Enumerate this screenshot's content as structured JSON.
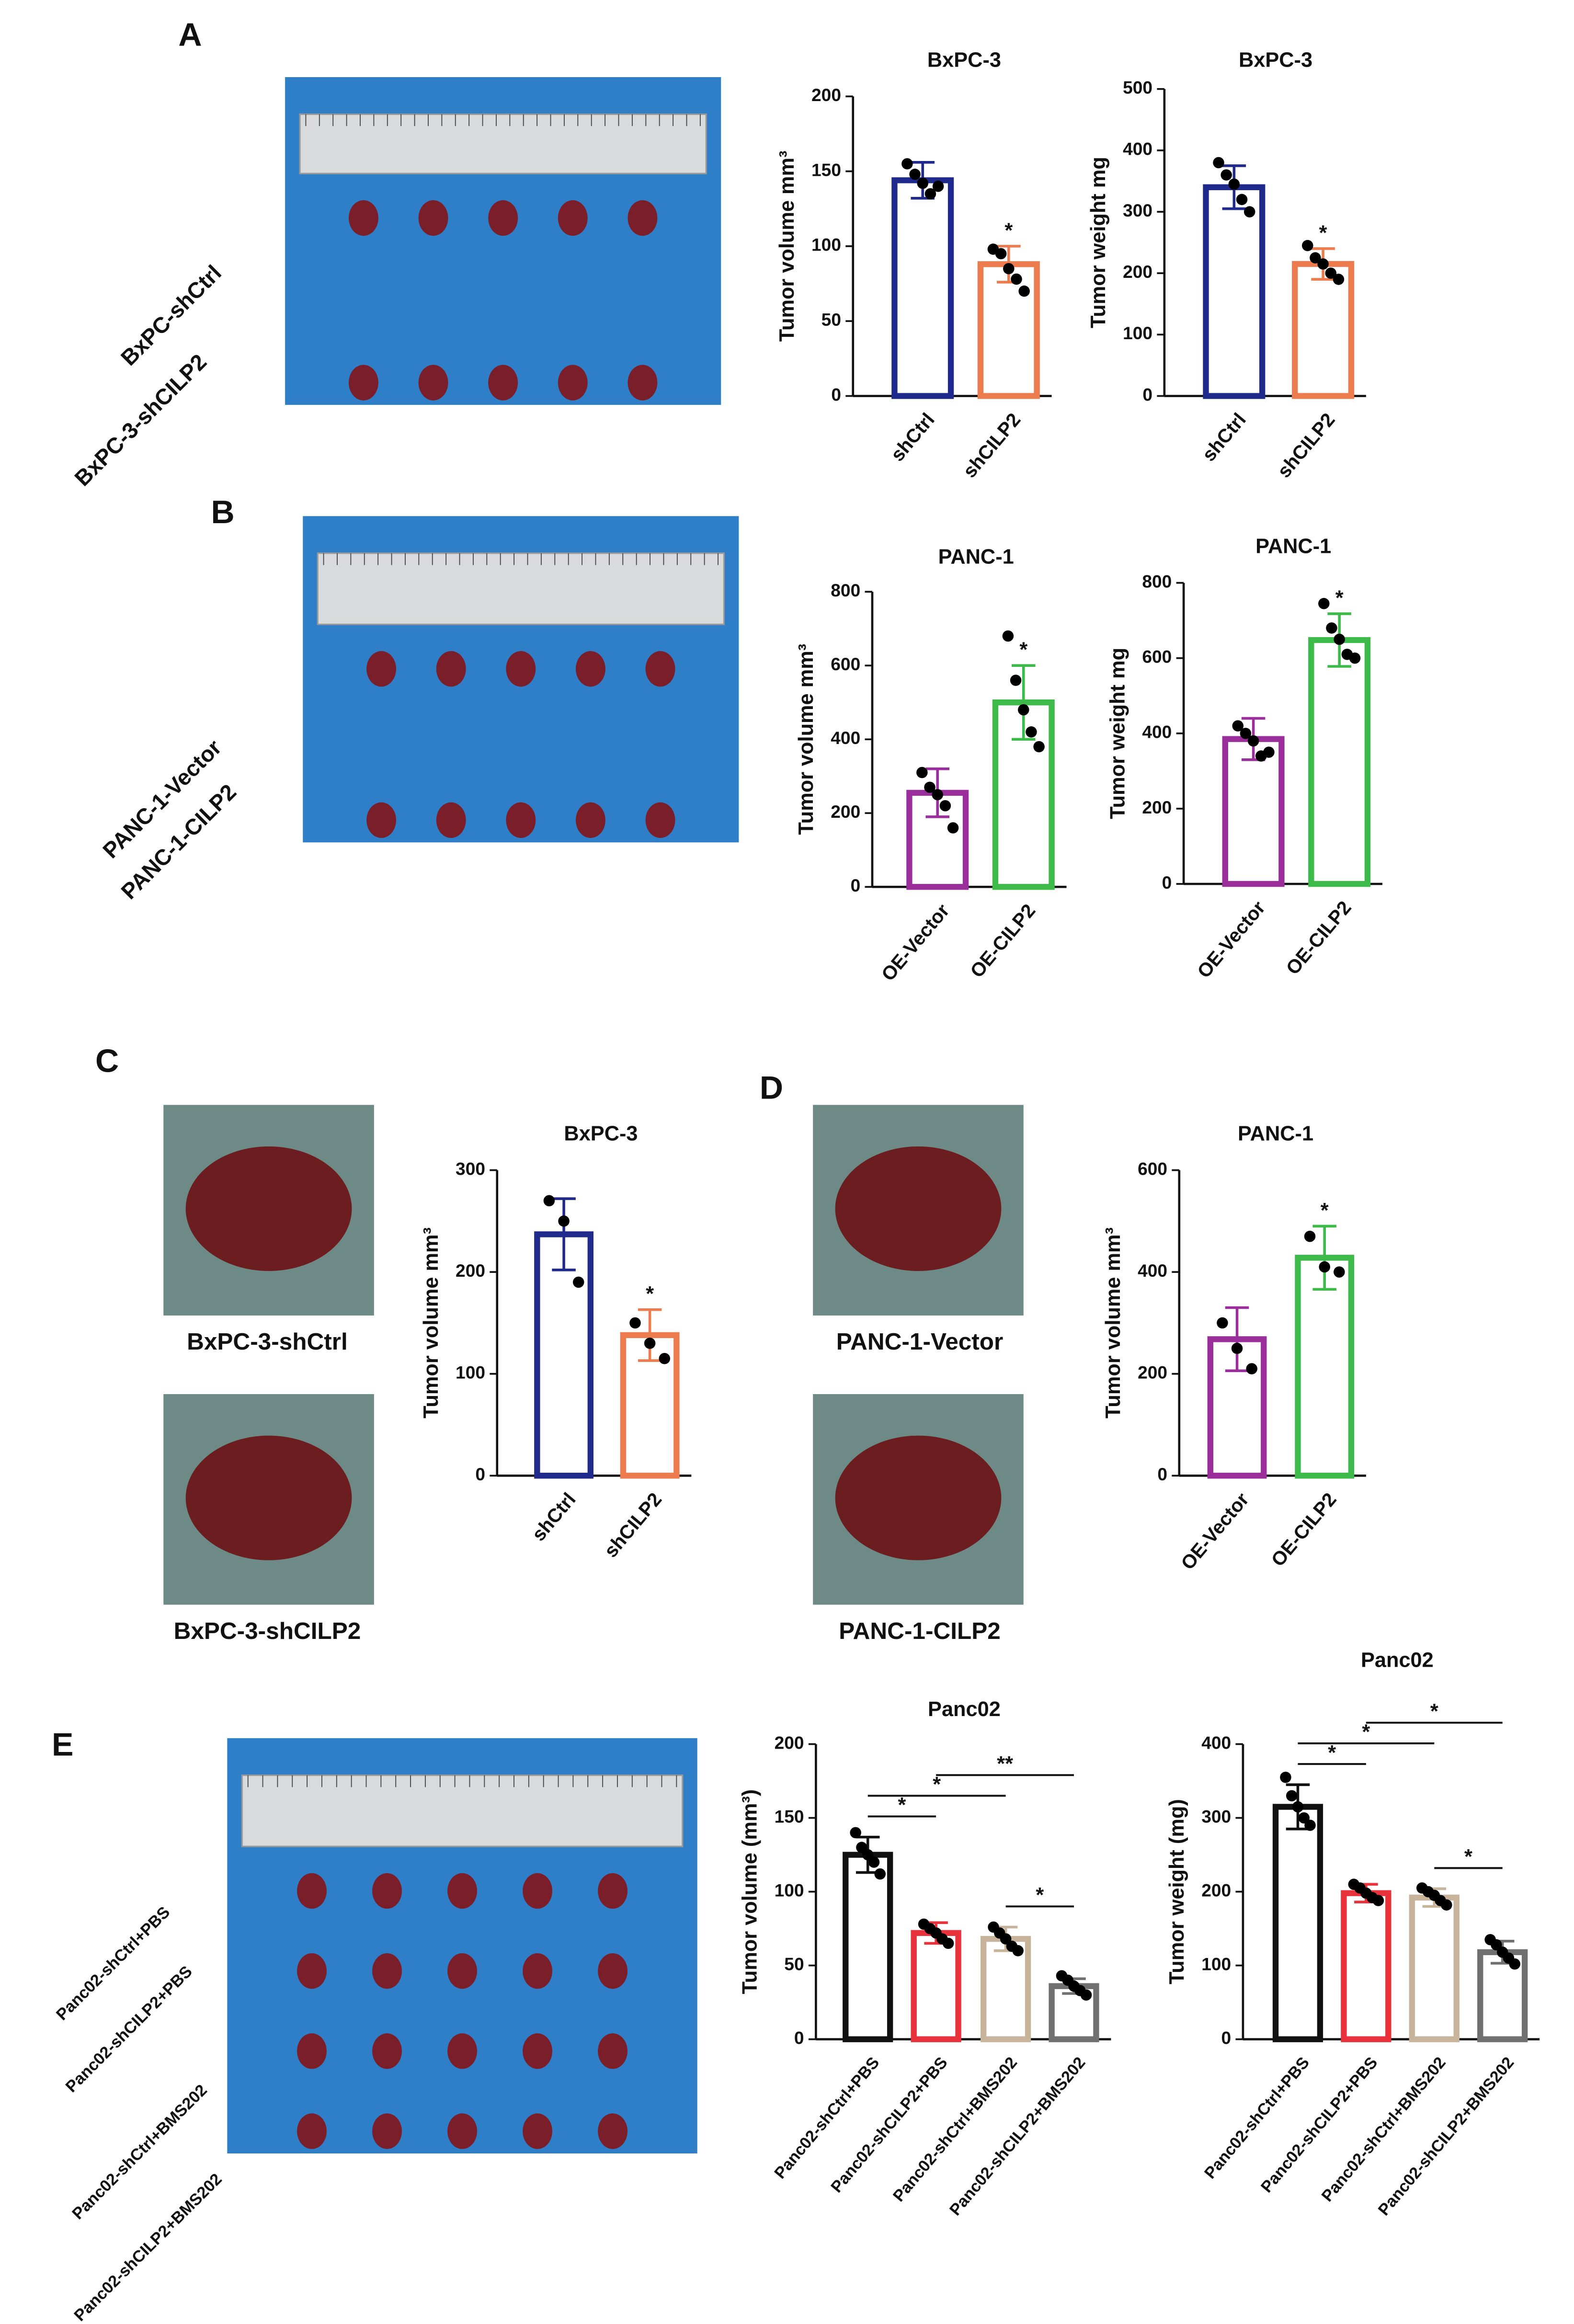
{
  "panels": [
    "A",
    "B",
    "C",
    "D",
    "E"
  ],
  "photo_labels": [
    "BxPC-shCtrl",
    "BxPC-3-shCILP2",
    "PANC-1-Vector",
    "PANC-1-CILP2",
    "BxPC-3-shCtrl",
    "BxPC-3-shCILP2",
    "PANC-1-Vector",
    "PANC-1-CILP2",
    "Panc02-shCtrl+PBS",
    "Panc02-shCILP2+PBS",
    "Panc02-shCtrl+BMS202",
    "Panc02-shCILP2+BMS202"
  ],
  "chart_data": [
    {
      "type": "bar",
      "title": "BxPC-3",
      "ylabel": "Tumor volume  mm³",
      "categories": [
        "shCtrl",
        "shCILP2"
      ],
      "values": [
        144,
        88
      ],
      "errors": [
        12,
        12
      ],
      "colors": [
        "#1f2a8c",
        "#ec7b4e"
      ],
      "points": [
        [
          155,
          148,
          142,
          135,
          140
        ],
        [
          98,
          95,
          85,
          78,
          70
        ]
      ],
      "ylim": [
        0,
        200
      ],
      "yticks": [
        0,
        50,
        100,
        150,
        200
      ],
      "annotations": [
        {
          "index": 1,
          "text": "*"
        }
      ]
    },
    {
      "type": "bar",
      "title": "BxPC-3",
      "ylabel": "Tumor weight  mg",
      "categories": [
        "shCtrl",
        "shCILP2"
      ],
      "values": [
        340,
        215
      ],
      "errors": [
        35,
        25
      ],
      "colors": [
        "#1f2a8c",
        "#ec7b4e"
      ],
      "points": [
        [
          380,
          360,
          345,
          320,
          300
        ],
        [
          245,
          225,
          215,
          200,
          190
        ]
      ],
      "ylim": [
        0,
        500
      ],
      "yticks": [
        0,
        100,
        200,
        300,
        400,
        500
      ],
      "annotations": [
        {
          "index": 1,
          "text": "*"
        }
      ]
    },
    {
      "type": "bar",
      "title": "PANC-1",
      "ylabel": "Tumor volume  mm³",
      "categories": [
        "OE-Vector",
        "OE-CILP2"
      ],
      "values": [
        255,
        500
      ],
      "errors": [
        65,
        100
      ],
      "colors": [
        "#9a2f9c",
        "#3dba4a"
      ],
      "points": [
        [
          310,
          270,
          250,
          220,
          160
        ],
        [
          680,
          560,
          480,
          420,
          380
        ]
      ],
      "ylim": [
        0,
        800
      ],
      "yticks": [
        0,
        200,
        400,
        600,
        800
      ],
      "annotations": [
        {
          "index": 1,
          "text": "*"
        }
      ]
    },
    {
      "type": "bar",
      "title": "PANC-1",
      "ylabel": "Tumor weight  mg",
      "categories": [
        "OE-Vector",
        "OE-CILP2"
      ],
      "values": [
        385,
        648
      ],
      "errors": [
        55,
        70
      ],
      "colors": [
        "#9a2f9c",
        "#3dba4a"
      ],
      "points": [
        [
          420,
          400,
          380,
          340,
          350
        ],
        [
          745,
          680,
          650,
          610,
          600
        ]
      ],
      "ylim": [
        0,
        800
      ],
      "yticks": [
        0,
        200,
        400,
        600,
        800
      ],
      "annotations": [
        {
          "index": 1,
          "text": "*"
        }
      ]
    },
    {
      "type": "bar",
      "title": "BxPC-3",
      "ylabel": "Tumor volume  mm³",
      "categories": [
        "shCtrl",
        "shCILP2"
      ],
      "values": [
        237,
        138
      ],
      "errors": [
        35,
        25
      ],
      "colors": [
        "#1f2a8c",
        "#ec7b4e"
      ],
      "points": [
        [
          270,
          250,
          190
        ],
        [
          150,
          130,
          115
        ]
      ],
      "ylim": [
        0,
        300
      ],
      "yticks": [
        0,
        100,
        200,
        300
      ],
      "annotations": [
        {
          "index": 1,
          "text": "*"
        }
      ]
    },
    {
      "type": "bar",
      "title": "PANC-1",
      "ylabel": "Tumor volume  mm³",
      "categories": [
        "OE-Vector",
        "OE-CILP2"
      ],
      "values": [
        268,
        428
      ],
      "errors": [
        62,
        62
      ],
      "colors": [
        "#9a2f9c",
        "#3dba4a"
      ],
      "points": [
        [
          300,
          250,
          210
        ],
        [
          470,
          410,
          400
        ]
      ],
      "ylim": [
        0,
        600
      ],
      "yticks": [
        0,
        200,
        400,
        600
      ],
      "annotations": [
        {
          "index": 1,
          "text": "*"
        }
      ]
    },
    {
      "type": "bar",
      "title": "Panc02",
      "ylabel": "Tumor volume  (mm³)",
      "categories": [
        "Panc02-shCtrl+PBS",
        "Panc02-shCILP2+PBS",
        "Panc02-shCtrl+BMS202",
        "Panc02-shCILP2+BMS202"
      ],
      "values": [
        125,
        72,
        68,
        36
      ],
      "errors": [
        12,
        7,
        8,
        5
      ],
      "colors": [
        "#111111",
        "#e8323c",
        "#c8b49a",
        "#707070"
      ],
      "points": [
        [
          140,
          130,
          125,
          120,
          112
        ],
        [
          78,
          75,
          72,
          68,
          65
        ],
        [
          76,
          72,
          68,
          63,
          60
        ],
        [
          43,
          40,
          36,
          33,
          30
        ]
      ],
      "ylim": [
        0,
        200
      ],
      "yticks": [
        0,
        50,
        100,
        150,
        200
      ],
      "comparisons": [
        {
          "pair": [
            0,
            1
          ],
          "text": "*"
        },
        {
          "pair": [
            0,
            2
          ],
          "text": "*"
        },
        {
          "pair": [
            1,
            3
          ],
          "text": "**"
        },
        {
          "pair": [
            2,
            3
          ],
          "text": "*"
        }
      ]
    },
    {
      "type": "bar",
      "title": "Panc02",
      "ylabel": "Tumor weight  (mg)",
      "categories": [
        "Panc02-shCtrl+PBS",
        "Panc02-shCILP2+PBS",
        "Panc02-shCtrl+BMS202",
        "Panc02-shCILP2+BMS202"
      ],
      "values": [
        315,
        198,
        192,
        118
      ],
      "errors": [
        30,
        12,
        12,
        15
      ],
      "colors": [
        "#111111",
        "#e8323c",
        "#c8b49a",
        "#707070"
      ],
      "points": [
        [
          355,
          330,
          315,
          300,
          290
        ],
        [
          210,
          205,
          198,
          192,
          188
        ],
        [
          205,
          200,
          195,
          188,
          182
        ],
        [
          135,
          128,
          118,
          110,
          102
        ]
      ],
      "ylim": [
        0,
        400
      ],
      "yticks": [
        0,
        100,
        200,
        300,
        400
      ],
      "comparisons": [
        {
          "pair": [
            0,
            1
          ],
          "text": "*"
        },
        {
          "pair": [
            0,
            2
          ],
          "text": "*"
        },
        {
          "pair": [
            1,
            3
          ],
          "text": "*"
        },
        {
          "pair": [
            2,
            3
          ],
          "text": "*"
        }
      ]
    }
  ]
}
